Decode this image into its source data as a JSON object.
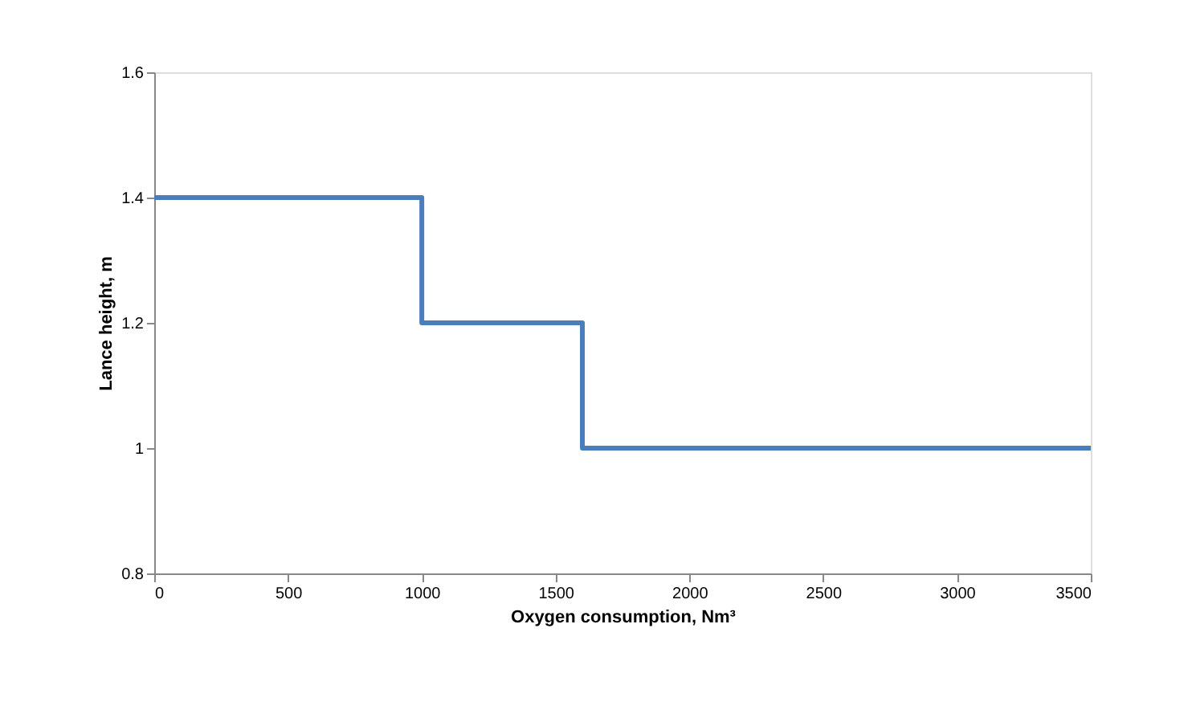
{
  "chart_data": {
    "type": "step",
    "xlabel": "Oxygen consumption, Nm³",
    "ylabel": "Lance height, m",
    "x": [
      0,
      1000,
      1600,
      3500
    ],
    "series": [
      {
        "color": "#4a7ebb",
        "values": [
          1.4,
          1.2,
          1.0,
          1.0
        ]
      }
    ],
    "xlim": [
      0,
      3500
    ],
    "xticks": [
      0,
      500,
      1000,
      1500,
      2000,
      2500,
      3000,
      3500
    ],
    "ylim": [
      0.8,
      1.6
    ],
    "yticks": [
      0.8,
      1,
      1.2,
      1.4,
      1.6
    ],
    "grid": false,
    "legend": false,
    "marker": "none",
    "line_style": "solid"
  }
}
